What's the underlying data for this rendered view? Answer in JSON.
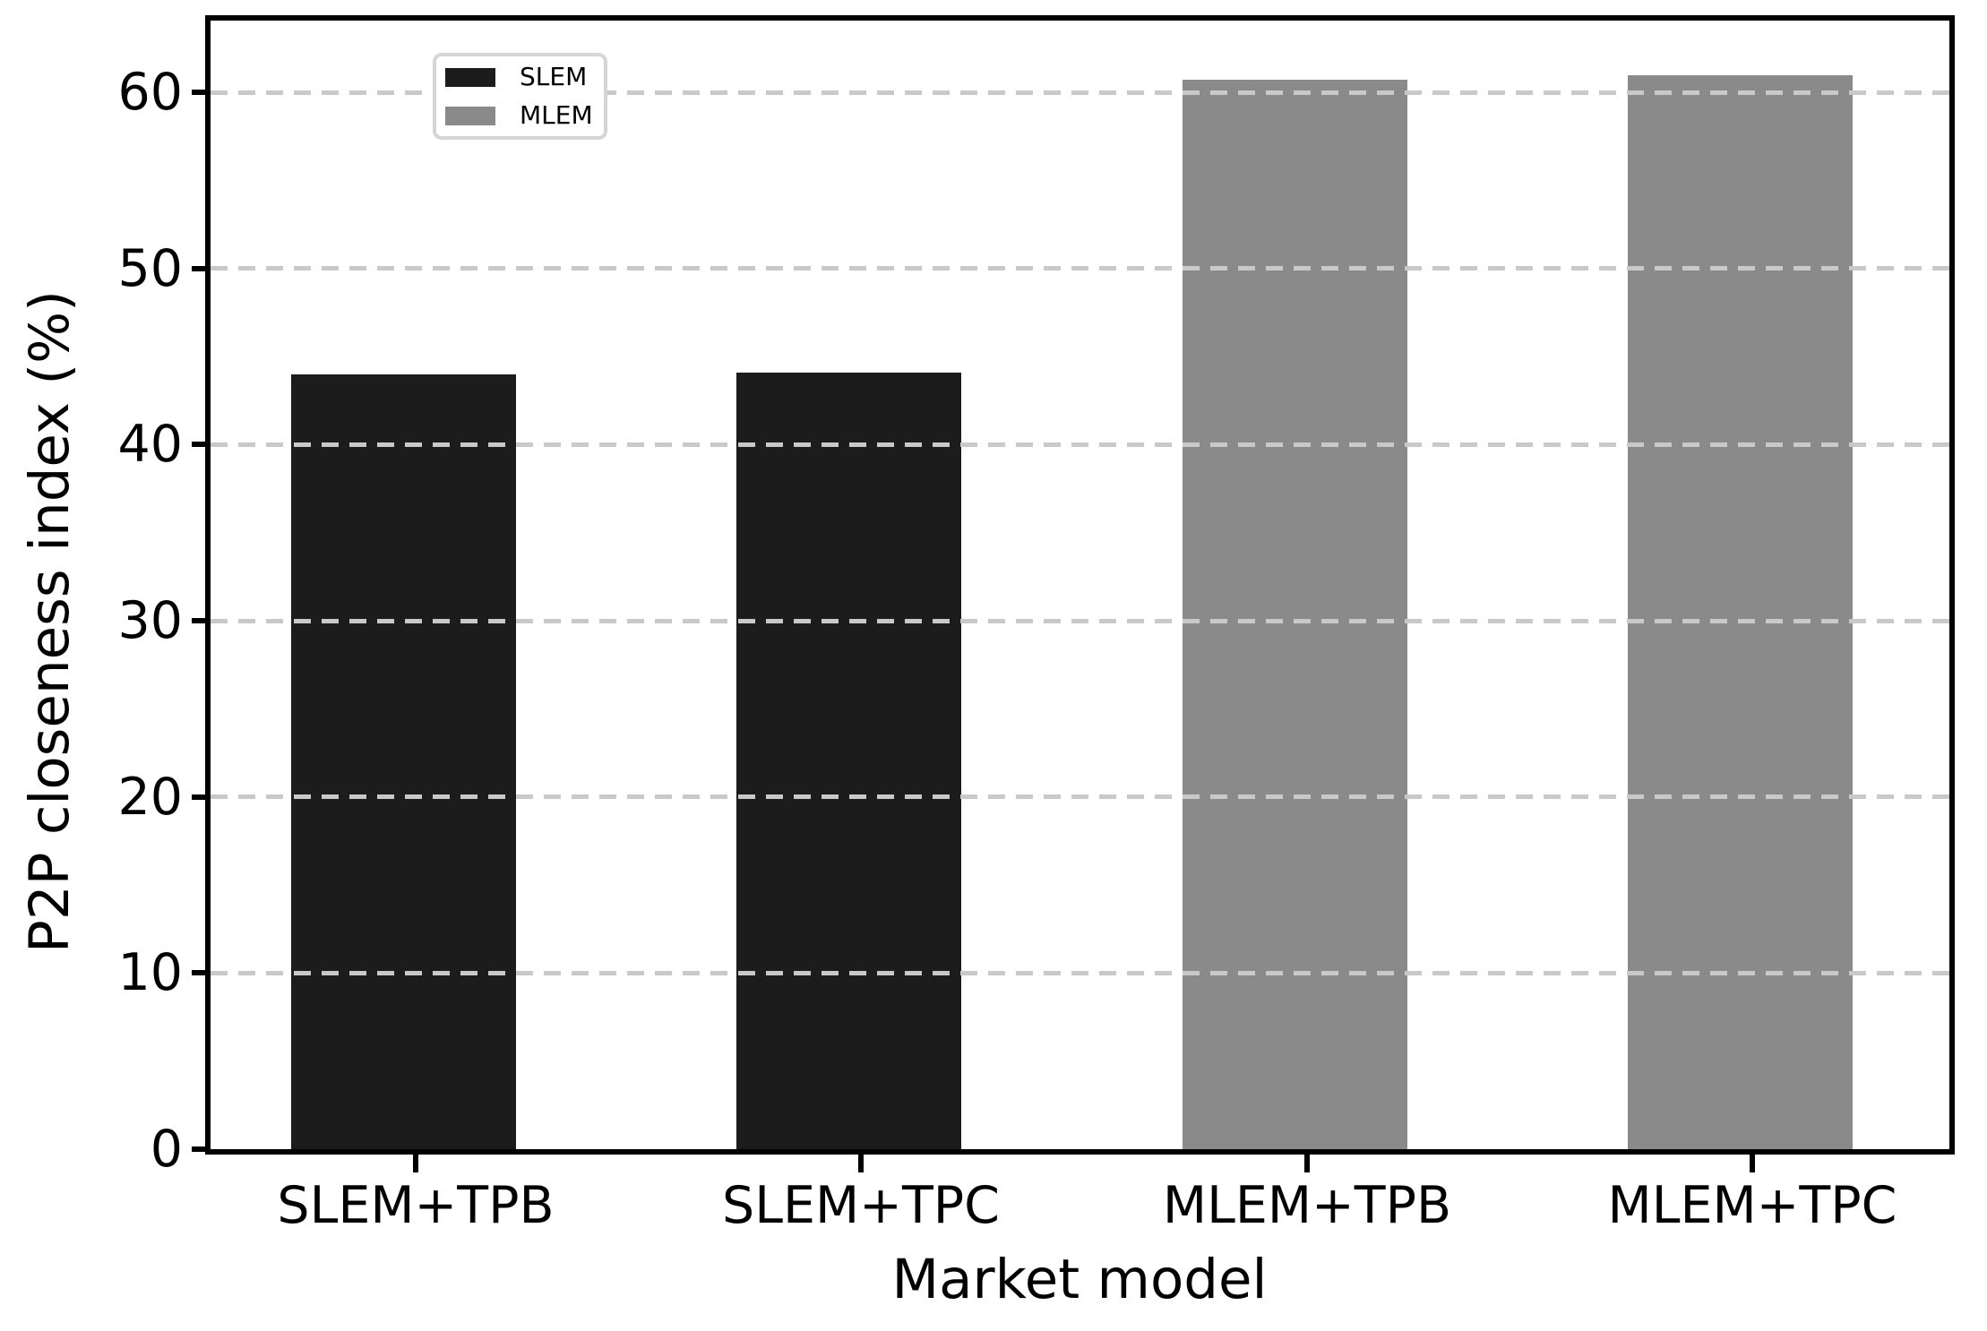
{
  "chart": {
    "xlabel": "Market model",
    "ylabel": "P2P closeness index (%)"
  },
  "legend": {
    "items": [
      {
        "label": "SLEM",
        "color": "#1c1c1c"
      },
      {
        "label": "MLEM",
        "color": "#8a8a8a"
      }
    ]
  },
  "colors": {
    "slem_bar": "#1c1c1c",
    "mlem_bar": "#8a8a8a",
    "gridline": "#c9c9c9",
    "axis": "#000000",
    "background": "#ffffff",
    "legend_border": "#d5d5d5"
  },
  "chart_data": {
    "type": "bar",
    "title": "",
    "xlabel": "Market model",
    "ylabel": "P2P closeness index (%)",
    "categories": [
      "SLEM+TPB",
      "SLEM+TPC",
      "MLEM+TPB",
      "MLEM+TPC"
    ],
    "series": [
      {
        "name": "SLEM",
        "color": "#1c1c1c",
        "values": [
          44.0,
          44.1,
          null,
          null
        ]
      },
      {
        "name": "MLEM",
        "color": "#8a8a8a",
        "values": [
          null,
          null,
          60.7,
          61.0
        ]
      }
    ],
    "ylim": [
      0,
      64
    ],
    "yticks": [
      0,
      10,
      20,
      30,
      40,
      50,
      60
    ],
    "ytick_labels": [
      "0",
      "10",
      "20",
      "30",
      "40",
      "50",
      "60"
    ],
    "grid": {
      "axis": "y",
      "style": "dashed",
      "above_bars": true
    },
    "legend_position": "upper left"
  }
}
